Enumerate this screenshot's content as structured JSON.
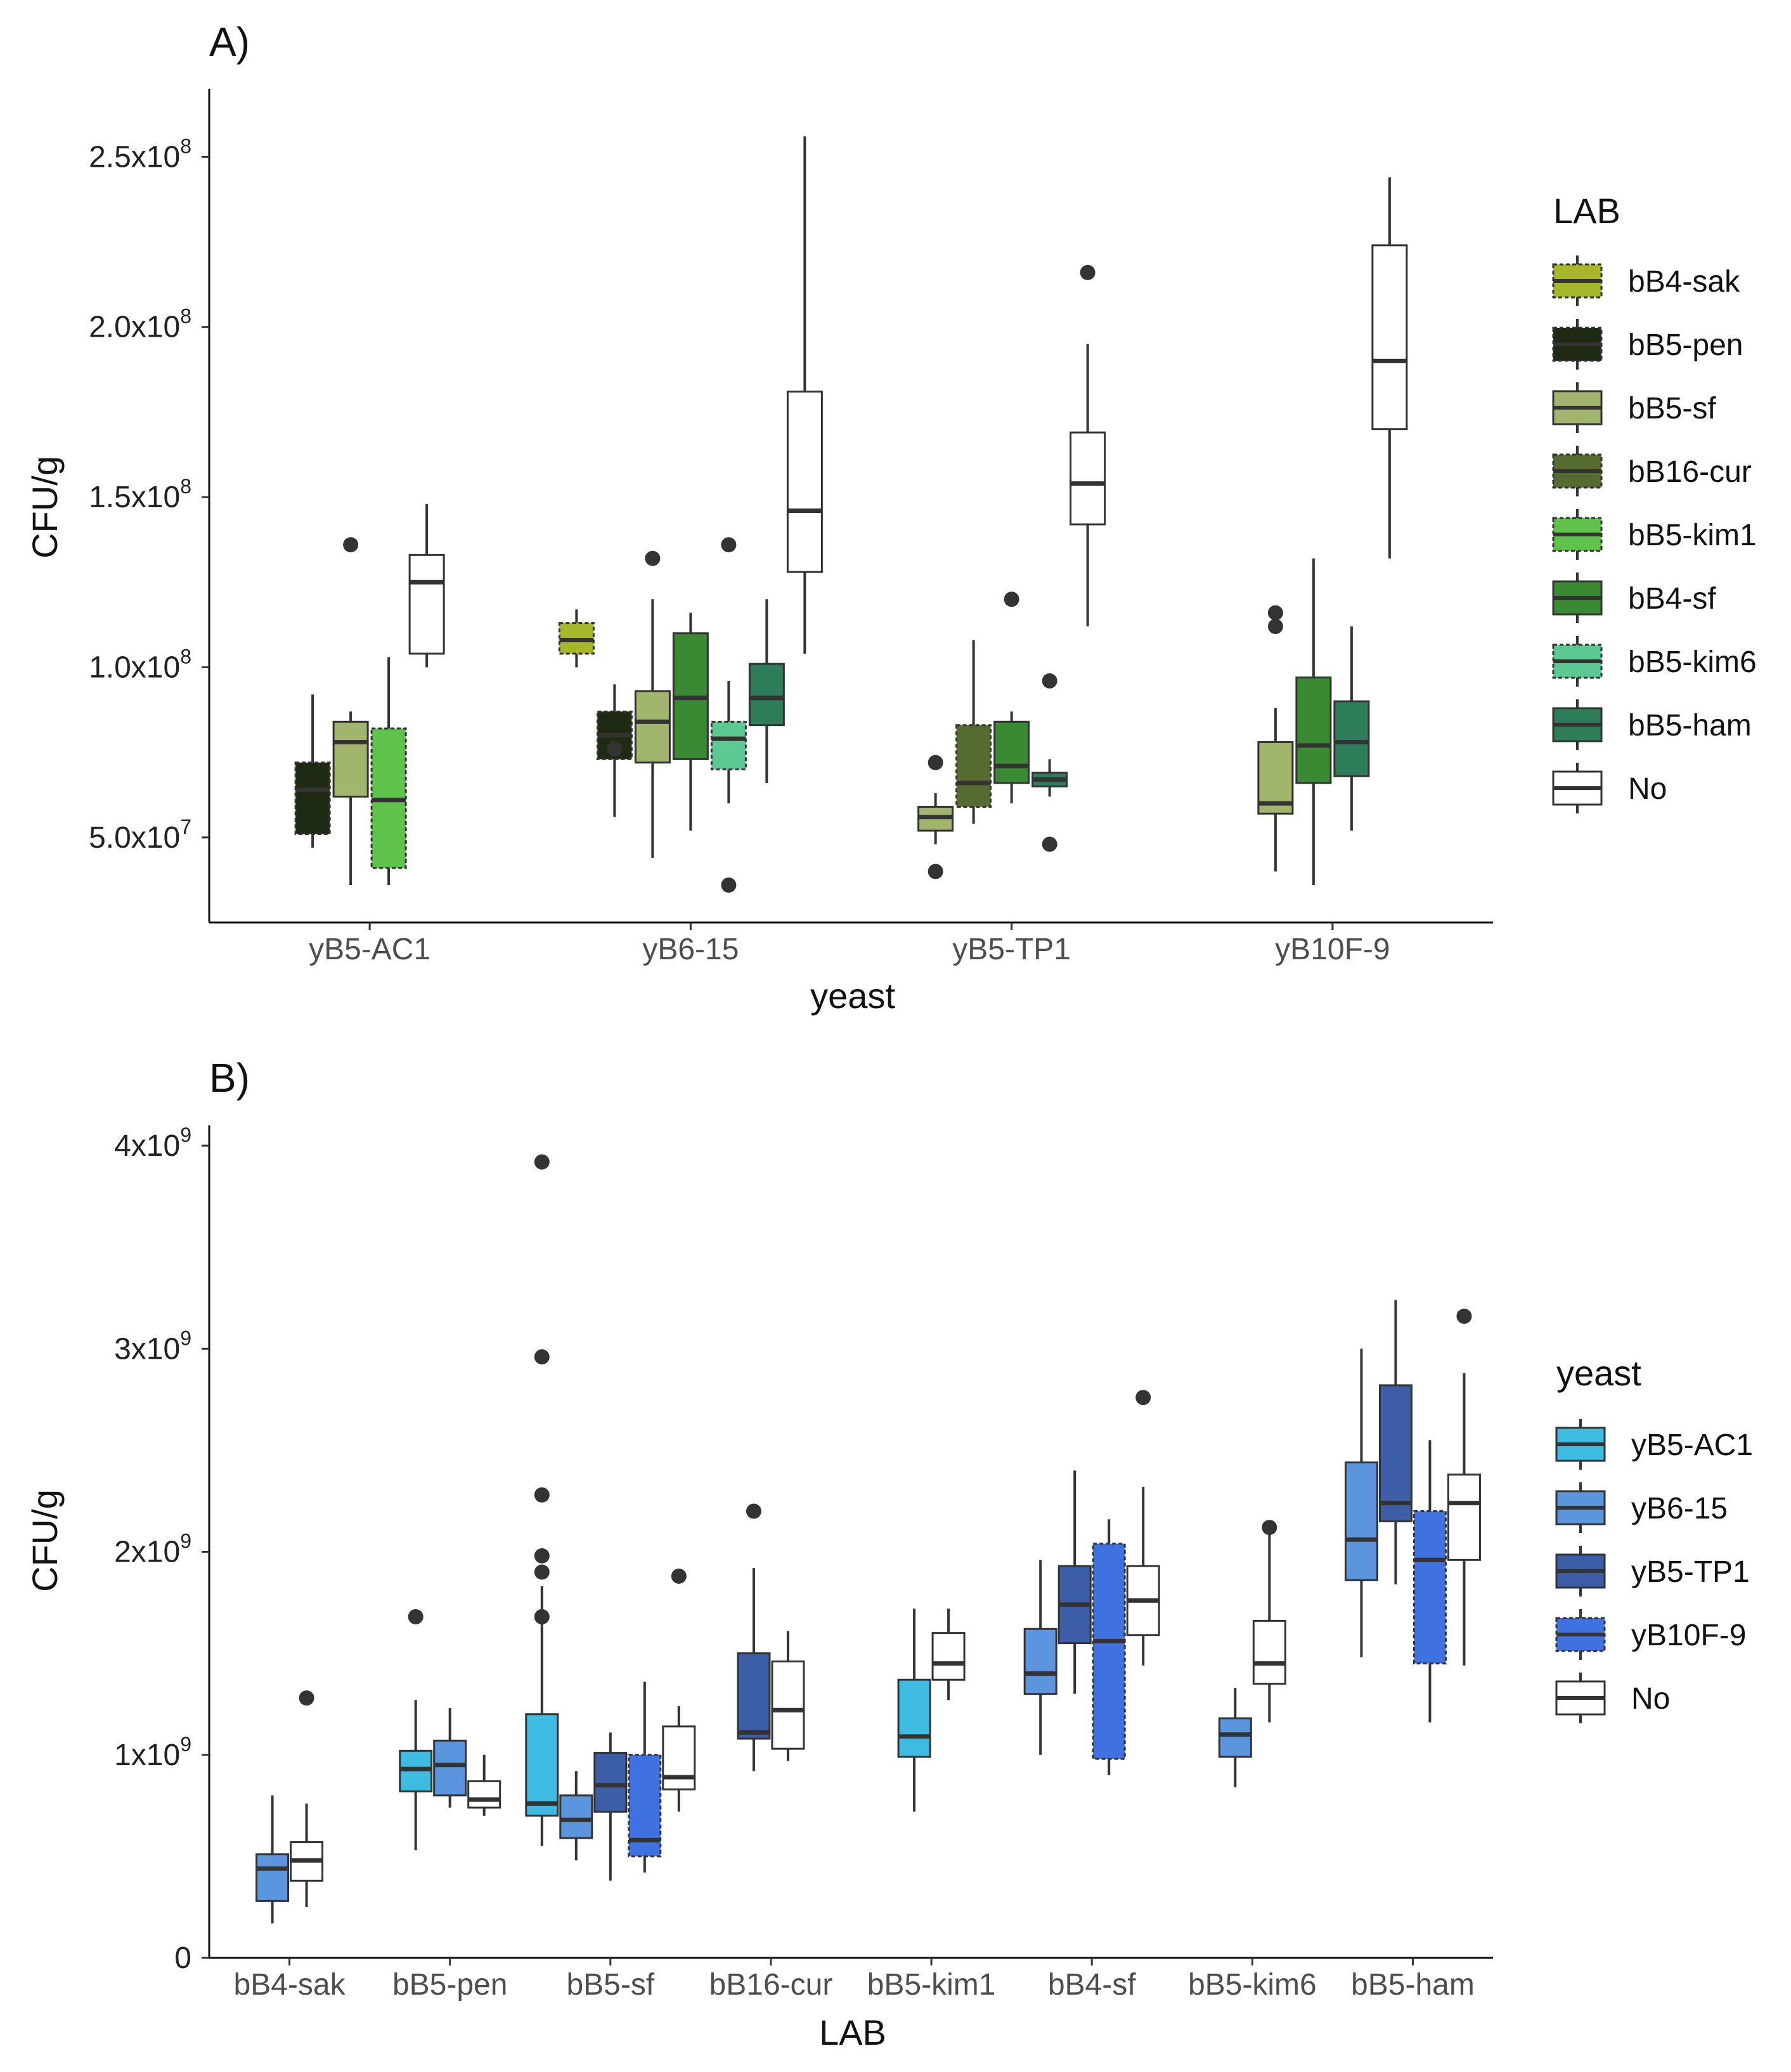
{
  "chart_data": [
    {
      "type": "boxplot",
      "panel_label": "A)",
      "xlabel": "yeast",
      "ylabel": "CFU/g",
      "ylim": [
        25000000,
        270000000
      ],
      "yticks": [
        {
          "value": 50000000,
          "label": "5.0x10",
          "exp": "7"
        },
        {
          "value": 100000000,
          "label": "1.0x10",
          "exp": "8"
        },
        {
          "value": 150000000,
          "label": "1.5x10",
          "exp": "8"
        },
        {
          "value": 200000000,
          "label": "2.0x10",
          "exp": "8"
        },
        {
          "value": 250000000,
          "label": "2.5x10",
          "exp": "8"
        }
      ],
      "categories": [
        "yB5-AC1",
        "yB6-15",
        "yB5-TP1",
        "yB10F-9"
      ],
      "legend": {
        "title": "LAB",
        "entries": [
          {
            "name": "bB4-sak",
            "color": "#a6b82a",
            "dashed": true
          },
          {
            "name": "bB5-pen",
            "color": "#1f2a12",
            "dashed": true
          },
          {
            "name": "bB5-sf",
            "color": "#a2b56d",
            "dashed": false
          },
          {
            "name": "bB16-cur",
            "color": "#556b2f",
            "dashed": true
          },
          {
            "name": "bB5-kim1",
            "color": "#5fc24a",
            "dashed": true
          },
          {
            "name": "bB4-sf",
            "color": "#3a8a33",
            "dashed": false
          },
          {
            "name": "bB5-kim6",
            "color": "#5cc892",
            "dashed": true
          },
          {
            "name": "bB5-ham",
            "color": "#2e7d5a",
            "dashed": false
          },
          {
            "name": "No",
            "color": "#ffffff",
            "dashed": false
          }
        ]
      },
      "groups": [
        {
          "category": "yB5-AC1",
          "boxes": [
            {
              "series": "bB5-pen",
              "whisker_low": 47000000,
              "q1": 51000000,
              "median": 64000000,
              "q3": 72000000,
              "whisker_high": 92000000,
              "outliers": []
            },
            {
              "series": "bB5-sf",
              "whisker_low": 36000000,
              "q1": 62000000,
              "median": 78000000,
              "q3": 84000000,
              "whisker_high": 87000000,
              "outliers": [
                136000000
              ]
            },
            {
              "series": "bB5-kim1",
              "whisker_low": 36000000,
              "q1": 41000000,
              "median": 61000000,
              "q3": 82000000,
              "whisker_high": 103000000,
              "outliers": []
            },
            {
              "series": "No",
              "whisker_low": 100000000,
              "q1": 104000000,
              "median": 125000000,
              "q3": 133000000,
              "whisker_high": 148000000,
              "outliers": []
            }
          ]
        },
        {
          "category": "yB6-15",
          "boxes": [
            {
              "series": "bB4-sak",
              "whisker_low": 100000000,
              "q1": 104000000,
              "median": 108000000,
              "q3": 113000000,
              "whisker_high": 117000000,
              "outliers": []
            },
            {
              "series": "bB5-pen",
              "whisker_low": 56000000,
              "q1": 73000000,
              "median": 80000000,
              "q3": 87000000,
              "whisker_high": 95000000,
              "outliers": [
                76000000
              ]
            },
            {
              "series": "bB5-sf",
              "whisker_low": 44000000,
              "q1": 72000000,
              "median": 84000000,
              "q3": 93000000,
              "whisker_high": 120000000,
              "outliers": [
                132000000
              ]
            },
            {
              "series": "bB4-sf",
              "whisker_low": 52000000,
              "q1": 73000000,
              "median": 91000000,
              "q3": 110000000,
              "whisker_high": 116000000,
              "outliers": []
            },
            {
              "series": "bB5-kim6",
              "whisker_low": 60000000,
              "q1": 70000000,
              "median": 79000000,
              "q3": 84000000,
              "whisker_high": 96000000,
              "outliers": [
                136000000,
                36000000
              ]
            },
            {
              "series": "bB5-ham",
              "whisker_low": 66000000,
              "q1": 83000000,
              "median": 91000000,
              "q3": 101000000,
              "whisker_high": 120000000,
              "outliers": []
            },
            {
              "series": "No",
              "whisker_low": 104000000,
              "q1": 128000000,
              "median": 146000000,
              "q3": 181000000,
              "whisker_high": 256000000,
              "outliers": []
            }
          ]
        },
        {
          "category": "yB5-TP1",
          "boxes": [
            {
              "series": "bB5-sf",
              "whisker_low": 48000000,
              "q1": 52000000,
              "median": 56000000,
              "q3": 59000000,
              "whisker_high": 63000000,
              "outliers": [
                72000000,
                40000000
              ]
            },
            {
              "series": "bB16-cur",
              "whisker_low": 54000000,
              "q1": 59000000,
              "median": 66000000,
              "q3": 83000000,
              "whisker_high": 108000000,
              "outliers": []
            },
            {
              "series": "bB4-sf",
              "whisker_low": 60000000,
              "q1": 66000000,
              "median": 71000000,
              "q3": 84000000,
              "whisker_high": 87000000,
              "outliers": [
                120000000
              ]
            },
            {
              "series": "bB5-ham",
              "whisker_low": 62000000,
              "q1": 65000000,
              "median": 67000000,
              "q3": 69000000,
              "whisker_high": 73000000,
              "outliers": [
                96000000,
                48000000
              ]
            },
            {
              "series": "No",
              "whisker_low": 112000000,
              "q1": 142000000,
              "median": 154000000,
              "q3": 169000000,
              "whisker_high": 195000000,
              "outliers": [
                216000000
              ]
            }
          ]
        },
        {
          "category": "yB10F-9",
          "boxes": [
            {
              "series": "bB5-sf",
              "whisker_low": 40000000,
              "q1": 57000000,
              "median": 60000000,
              "q3": 78000000,
              "whisker_high": 88000000,
              "outliers": [
                116000000,
                112000000
              ]
            },
            {
              "series": "bB4-sf",
              "whisker_low": 36000000,
              "q1": 66000000,
              "median": 77000000,
              "q3": 97000000,
              "whisker_high": 132000000,
              "outliers": []
            },
            {
              "series": "bB5-ham",
              "whisker_low": 52000000,
              "q1": 68000000,
              "median": 78000000,
              "q3": 90000000,
              "whisker_high": 112000000,
              "outliers": []
            },
            {
              "series": "No",
              "whisker_low": 132000000,
              "q1": 170000000,
              "median": 190000000,
              "q3": 224000000,
              "whisker_high": 244000000,
              "outliers": []
            }
          ]
        }
      ]
    },
    {
      "type": "boxplot",
      "panel_label": "B)",
      "xlabel": "LAB",
      "ylabel": "CFU/g",
      "ylim": [
        0,
        4100000000
      ],
      "yticks": [
        {
          "value": 0,
          "label": "0",
          "exp": ""
        },
        {
          "value": 1000000000,
          "label": "1x10",
          "exp": "9"
        },
        {
          "value": 2000000000,
          "label": "2x10",
          "exp": "9"
        },
        {
          "value": 3000000000,
          "label": "3x10",
          "exp": "9"
        },
        {
          "value": 4000000000,
          "label": "4x10",
          "exp": "9"
        }
      ],
      "categories": [
        "bB4-sak",
        "bB5-pen",
        "bB5-sf",
        "bB16-cur",
        "bB5-kim1",
        "bB4-sf",
        "bB5-kim6",
        "bB5-ham"
      ],
      "legend": {
        "title": "yeast",
        "entries": [
          {
            "name": "yB5-AC1",
            "color": "#3dbbe0",
            "dashed": false
          },
          {
            "name": "yB6-15",
            "color": "#5b95dd",
            "dashed": false
          },
          {
            "name": "yB5-TP1",
            "color": "#3b5ea6",
            "dashed": false
          },
          {
            "name": "yB10F-9",
            "color": "#3f72e0",
            "dashed": true
          },
          {
            "name": "No",
            "color": "#ffffff",
            "dashed": false
          }
        ]
      },
      "groups": [
        {
          "category": "bB4-sak",
          "boxes": [
            {
              "series": "yB6-15",
              "whisker_low": 170000000,
              "q1": 280000000,
              "median": 440000000,
              "q3": 510000000,
              "whisker_high": 800000000,
              "outliers": []
            },
            {
              "series": "No",
              "whisker_low": 250000000,
              "q1": 380000000,
              "median": 480000000,
              "q3": 570000000,
              "whisker_high": 760000000,
              "outliers": [
                1280000000
              ]
            }
          ]
        },
        {
          "category": "bB5-pen",
          "boxes": [
            {
              "series": "yB5-AC1",
              "whisker_low": 530000000,
              "q1": 820000000,
              "median": 930000000,
              "q3": 1020000000,
              "whisker_high": 1270000000,
              "outliers": [
                1680000000
              ]
            },
            {
              "series": "yB6-15",
              "whisker_low": 740000000,
              "q1": 800000000,
              "median": 950000000,
              "q3": 1070000000,
              "whisker_high": 1230000000,
              "outliers": []
            },
            {
              "series": "No",
              "whisker_low": 700000000,
              "q1": 740000000,
              "median": 780000000,
              "q3": 870000000,
              "whisker_high": 1000000000,
              "outliers": []
            }
          ]
        },
        {
          "category": "bB5-sf",
          "boxes": [
            {
              "series": "yB5-AC1",
              "whisker_low": 550000000,
              "q1": 700000000,
              "median": 760000000,
              "q3": 1200000000,
              "whisker_high": 1830000000,
              "outliers": [
                3920000000,
                2960000000,
                2280000000,
                1980000000,
                1900000000,
                1680000000
              ]
            },
            {
              "series": "yB6-15",
              "whisker_low": 480000000,
              "q1": 590000000,
              "median": 680000000,
              "q3": 800000000,
              "whisker_high": 920000000,
              "outliers": []
            },
            {
              "series": "yB5-TP1",
              "whisker_low": 380000000,
              "q1": 720000000,
              "median": 850000000,
              "q3": 1010000000,
              "whisker_high": 1110000000,
              "outliers": []
            },
            {
              "series": "yB10F-9",
              "whisker_low": 420000000,
              "q1": 500000000,
              "median": 580000000,
              "q3": 1000000000,
              "whisker_high": 1360000000,
              "outliers": []
            },
            {
              "series": "No",
              "whisker_low": 720000000,
              "q1": 830000000,
              "median": 890000000,
              "q3": 1140000000,
              "whisker_high": 1240000000,
              "outliers": [
                1880000000
              ]
            }
          ]
        },
        {
          "category": "bB16-cur",
          "boxes": [
            {
              "series": "yB5-TP1",
              "whisker_low": 920000000,
              "q1": 1080000000,
              "median": 1110000000,
              "q3": 1500000000,
              "whisker_high": 1920000000,
              "outliers": [
                2200000000
              ]
            },
            {
              "series": "No",
              "whisker_low": 970000000,
              "q1": 1030000000,
              "median": 1220000000,
              "q3": 1460000000,
              "whisker_high": 1610000000,
              "outliers": []
            }
          ]
        },
        {
          "category": "bB5-kim1",
          "boxes": [
            {
              "series": "yB5-AC1",
              "whisker_low": 720000000,
              "q1": 990000000,
              "median": 1090000000,
              "q3": 1370000000,
              "whisker_high": 1720000000,
              "outliers": []
            },
            {
              "series": "No",
              "whisker_low": 1270000000,
              "q1": 1370000000,
              "median": 1450000000,
              "q3": 1600000000,
              "whisker_high": 1720000000,
              "outliers": []
            }
          ]
        },
        {
          "category": "bB4-sf",
          "boxes": [
            {
              "series": "yB6-15",
              "whisker_low": 1000000000,
              "q1": 1300000000,
              "median": 1400000000,
              "q3": 1620000000,
              "whisker_high": 1960000000,
              "outliers": []
            },
            {
              "series": "yB5-TP1",
              "whisker_low": 1300000000,
              "q1": 1550000000,
              "median": 1740000000,
              "q3": 1930000000,
              "whisker_high": 2400000000,
              "outliers": []
            },
            {
              "series": "yB10F-9",
              "whisker_low": 900000000,
              "q1": 980000000,
              "median": 1560000000,
              "q3": 2040000000,
              "whisker_high": 2160000000,
              "outliers": []
            },
            {
              "series": "No",
              "whisker_low": 1440000000,
              "q1": 1590000000,
              "median": 1760000000,
              "q3": 1930000000,
              "whisker_high": 2320000000,
              "outliers": [
                2760000000
              ]
            }
          ]
        },
        {
          "category": "bB5-kim6",
          "boxes": [
            {
              "series": "yB6-15",
              "whisker_low": 840000000,
              "q1": 990000000,
              "median": 1100000000,
              "q3": 1180000000,
              "whisker_high": 1330000000,
              "outliers": []
            },
            {
              "series": "No",
              "whisker_low": 1160000000,
              "q1": 1350000000,
              "median": 1450000000,
              "q3": 1660000000,
              "whisker_high": 2100000000,
              "outliers": [
                2120000000
              ]
            }
          ]
        },
        {
          "category": "bB5-ham",
          "boxes": [
            {
              "series": "yB6-15",
              "whisker_low": 1480000000,
              "q1": 1860000000,
              "median": 2060000000,
              "q3": 2440000000,
              "whisker_high": 3000000000,
              "outliers": []
            },
            {
              "series": "yB5-TP1",
              "whisker_low": 1840000000,
              "q1": 2150000000,
              "median": 2240000000,
              "q3": 2820000000,
              "whisker_high": 3240000000,
              "outliers": []
            },
            {
              "series": "yB10F-9",
              "whisker_low": 1160000000,
              "q1": 1450000000,
              "median": 1960000000,
              "q3": 2200000000,
              "whisker_high": 2550000000,
              "outliers": []
            },
            {
              "series": "No",
              "whisker_low": 1440000000,
              "q1": 1960000000,
              "median": 2240000000,
              "q3": 2380000000,
              "whisker_high": 2880000000,
              "outliers": [
                3160000000
              ]
            }
          ]
        }
      ]
    }
  ]
}
